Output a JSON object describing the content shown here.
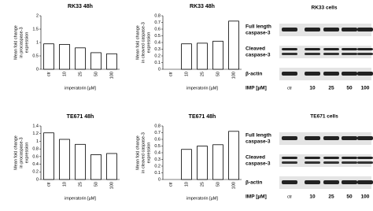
{
  "chart_data": [
    {
      "type": "bar",
      "title": "RK33 48h",
      "ylabel": [
        "Mean fold change",
        "in procaspase-3",
        "expression"
      ],
      "xlabel": "imperatorin [µM]",
      "categories": [
        "ctr",
        "10",
        "25",
        "50",
        "100"
      ],
      "values": [
        0.95,
        0.93,
        0.8,
        0.62,
        0.58
      ],
      "color": "#ffffff",
      "ylim": [
        0,
        2
      ],
      "yticks": [
        0,
        0.5,
        1,
        1.5,
        2
      ]
    },
    {
      "type": "bar",
      "title": "RK33 48h",
      "ylabel": [
        "Mean fold change",
        "in cleaved caspase-3",
        "expression"
      ],
      "xlabel": "imperatorin [µM]",
      "categories": [
        "ctr",
        "10",
        "25",
        "50",
        "100"
      ],
      "values": [
        null,
        0.38,
        0.39,
        0.42,
        0.72
      ],
      "color": "#ffffff",
      "ylim": [
        0,
        0.8
      ],
      "yticks": [
        0,
        0.1,
        0.2,
        0.3,
        0.4,
        0.5,
        0.6,
        0.7,
        0.8
      ]
    },
    {
      "type": "bar",
      "title": "TE671 48h",
      "ylabel": [
        "Mean fold change",
        "in procaspase-3",
        "expression"
      ],
      "xlabel": "imperatorin [µM]",
      "categories": [
        "ctr",
        "10",
        "25",
        "50",
        "100"
      ],
      "values": [
        1.22,
        1.05,
        0.92,
        0.65,
        0.68
      ],
      "color": "#ffffff",
      "ylim": [
        0,
        1.4
      ],
      "yticks": [
        0,
        0.2,
        0.4,
        0.6,
        0.8,
        1,
        1.2,
        1.4
      ]
    },
    {
      "type": "bar",
      "title": "TE671 48h",
      "ylabel": [
        "Mean fold change",
        "in cleaved caspase-3",
        "expression"
      ],
      "xlabel": "imperatorin [µM]",
      "categories": [
        "ctr",
        "10",
        "25",
        "50",
        "100"
      ],
      "values": [
        null,
        0.45,
        0.5,
        0.52,
        0.72
      ],
      "color": "#ffffff",
      "ylim": [
        0,
        0.8
      ],
      "yticks": [
        0,
        0.1,
        0.2,
        0.3,
        0.4,
        0.5,
        0.6,
        0.7,
        0.8
      ]
    }
  ],
  "blots": [
    {
      "title": "RK33 cells",
      "rows": [
        [
          "Full length",
          "caspase-3"
        ],
        [
          "Cleaved",
          "caspase-3"
        ],
        [
          "β-actin"
        ]
      ],
      "x_label": "IMP [µM]",
      "lanes": [
        "ctr",
        "10",
        "25",
        "50",
        "100"
      ]
    },
    {
      "title": "TE671 cells",
      "rows": [
        [
          "Full length",
          "caspase-3"
        ],
        [
          "Cleaved",
          "caspase-3"
        ],
        [
          "β-actin"
        ]
      ],
      "x_label": "IMP [µM]",
      "lanes": [
        "ctr",
        "10",
        "25",
        "50",
        "100"
      ]
    }
  ]
}
